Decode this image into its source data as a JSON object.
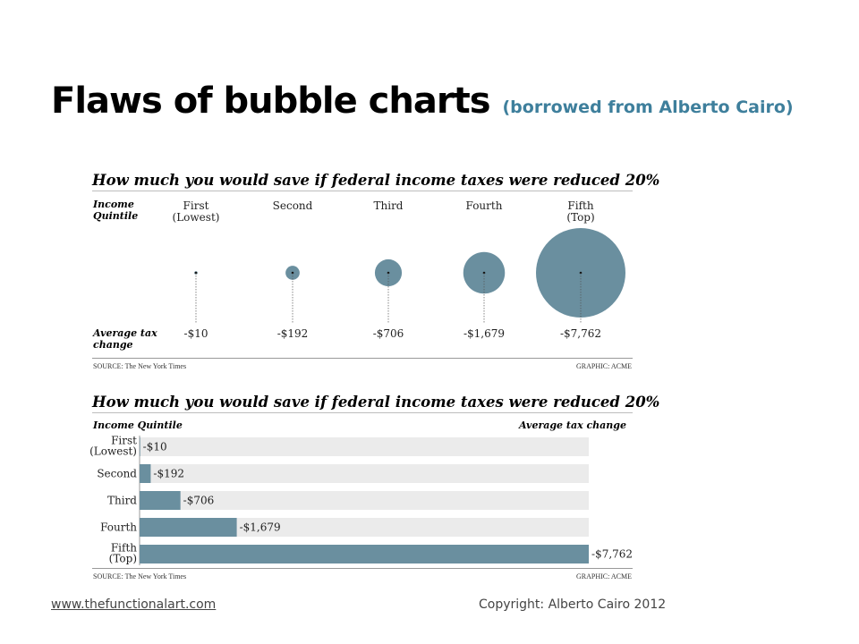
{
  "slide": {
    "title": "Flaws of bubble charts",
    "subtitle": "(borrowed from Alberto Cairo)",
    "footer_link": "www.thefunctionalart.com",
    "footer_copyright": "Copyright: Alberto Cairo 2012"
  },
  "colors": {
    "bubble": "#6a8f9f",
    "bar": "#6a8f9f",
    "track": "#ebebeb",
    "accent": "#3e7f9c"
  },
  "chart_data": [
    {
      "type": "scatter",
      "encoding": "bubble area",
      "title": "How much you would save if federal income taxes were reduced 20%",
      "row_label_top": "Income Quintile",
      "row_label_bottom": "Average tax change",
      "categories": [
        "First (Lowest)",
        "Second",
        "Third",
        "Fourth",
        "Fifth (Top)"
      ],
      "category_lines": [
        [
          "First",
          "(Lowest)"
        ],
        [
          "Second"
        ],
        [
          "Third"
        ],
        [
          "Fourth"
        ],
        [
          "Fifth",
          "(Top)"
        ]
      ],
      "values": [
        -10,
        -192,
        -706,
        -1679,
        -7762
      ],
      "value_labels": [
        "-$10",
        "-$192",
        "-$706",
        "-$1,679",
        "-$7,762"
      ],
      "source": "SOURCE: The New York Times",
      "credit": "GRAPHIC: ACME"
    },
    {
      "type": "bar",
      "orientation": "horizontal",
      "title": "How much you would save if federal income taxes were reduced 20%",
      "ylabel": "Income Quintile",
      "xlabel": "Average tax change",
      "categories": [
        "First (Lowest)",
        "Second",
        "Third",
        "Fourth",
        "Fifth (Top)"
      ],
      "category_lines": [
        [
          "First",
          "(Lowest)"
        ],
        [
          "Second"
        ],
        [
          "Third"
        ],
        [
          "Fourth"
        ],
        [
          "Fifth",
          "(Top)"
        ]
      ],
      "values": [
        -10,
        -192,
        -706,
        -1679,
        -7762
      ],
      "value_labels": [
        "-$10",
        "-$192",
        "-$706",
        "-$1,679",
        "-$7,762"
      ],
      "xlim": [
        0,
        7762
      ],
      "source": "SOURCE: The New York Times",
      "credit": "GRAPHIC: ACME"
    }
  ]
}
